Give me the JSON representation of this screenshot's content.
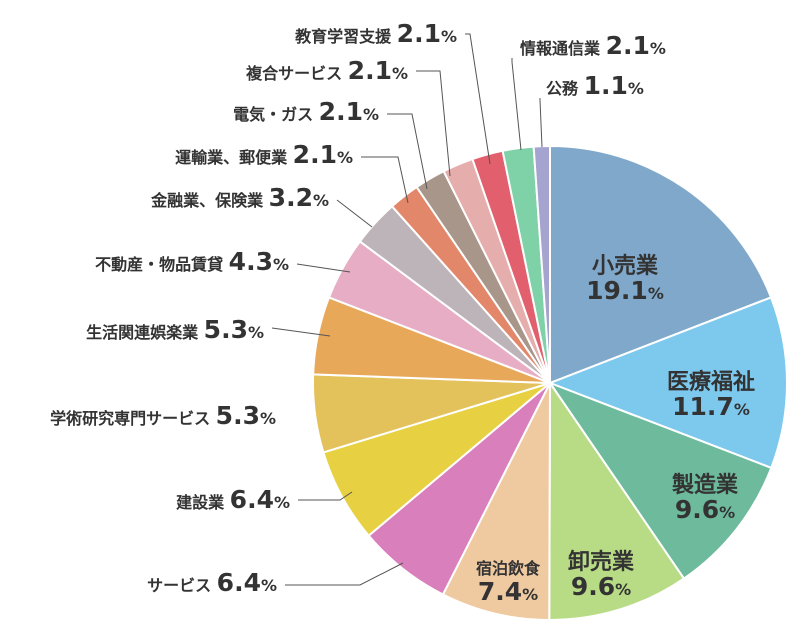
{
  "chart_data": {
    "type": "pie",
    "unit": "%",
    "start_angle_deg": 0,
    "direction": "clockwise",
    "slices": [
      {
        "label": "小売業",
        "value": 19.1,
        "color": "#7fa8ca",
        "label_placement": "inside"
      },
      {
        "label": "医療福祉",
        "value": 11.7,
        "color": "#7dc9ee",
        "label_placement": "inside"
      },
      {
        "label": "製造業",
        "value": 9.6,
        "color": "#6dba9d",
        "label_placement": "inside"
      },
      {
        "label": "卸売業",
        "value": 9.6,
        "color": "#b8dc86",
        "label_placement": "inside"
      },
      {
        "label": "宿泊飲食",
        "value": 7.4,
        "color": "#efc9a0",
        "label_placement": "inside"
      },
      {
        "label": "サービス",
        "value": 6.4,
        "color": "#d97fbc",
        "label_placement": "outside"
      },
      {
        "label": "建設業",
        "value": 6.4,
        "color": "#e8d043",
        "label_placement": "outside"
      },
      {
        "label": "学術研究専門サービス",
        "value": 5.3,
        "color": "#e3c15b",
        "label_placement": "outside"
      },
      {
        "label": "生活関連娯楽業",
        "value": 5.3,
        "color": "#e8a85a",
        "label_placement": "outside"
      },
      {
        "label": "不動産・物品賃貸",
        "value": 4.3,
        "color": "#e7adc4",
        "label_placement": "outside"
      },
      {
        "label": "金融業、保険業",
        "value": 3.2,
        "color": "#bcb4b8",
        "label_placement": "outside"
      },
      {
        "label": "運輸業、郵便業",
        "value": 2.1,
        "color": "#e2876a",
        "label_placement": "outside"
      },
      {
        "label": "電気・ガス",
        "value": 2.1,
        "color": "#a8968a",
        "label_placement": "outside"
      },
      {
        "label": "複合サービス",
        "value": 2.1,
        "color": "#e5aeac",
        "label_placement": "outside"
      },
      {
        "label": "教育学習支援",
        "value": 2.1,
        "color": "#e2606e",
        "label_placement": "outside"
      },
      {
        "label": "情報通信業",
        "value": 2.1,
        "color": "#7fd1a8",
        "label_placement": "outside"
      },
      {
        "label": "公務",
        "value": 1.1,
        "color": "#a5a3d0",
        "label_placement": "outside"
      }
    ],
    "title": "",
    "legend": "none"
  }
}
